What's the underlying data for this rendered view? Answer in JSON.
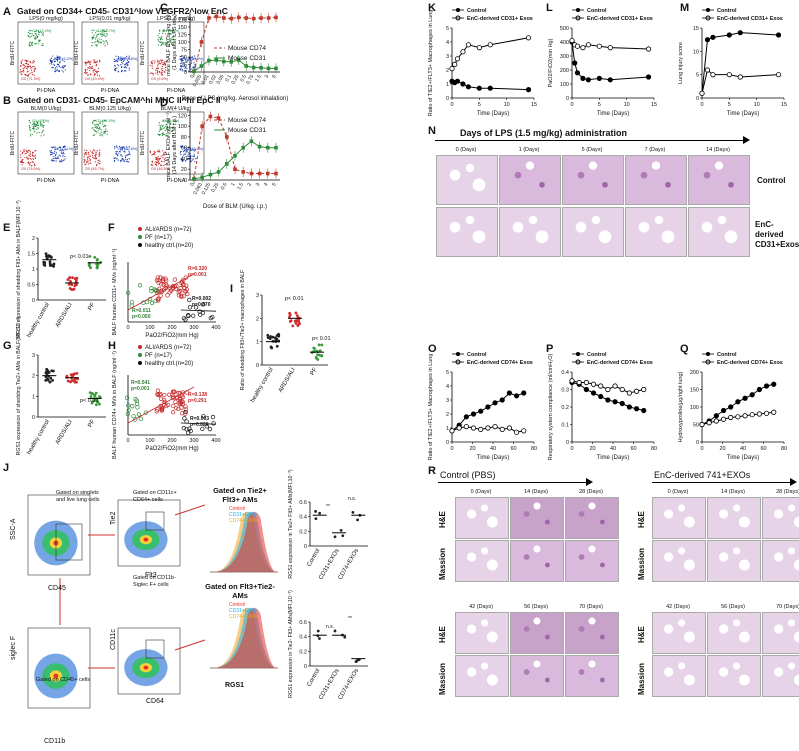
{
  "panels": {
    "A": {
      "letter": "A",
      "title": "Gated on CD34+ CD45- CD31^low VEGFR2^low EnC",
      "plots": [
        {
          "title": "LPS(0 mg/kg)",
          "g1": "G1 (12.4%)",
          "g2": "G2 (16.2%)",
          "g3": "G0 (71.3%)"
        },
        {
          "title": "LPS(0.01 mg/kg)",
          "g1": "G1 (21.7%)",
          "g2": "G2 (35.8%)",
          "g3": "G0 (43.4%)"
        },
        {
          "title": "LPS(1.5 mg/kg)",
          "g1": "G1 (1.5%)",
          "g2": "G2 (88.9%)",
          "g3": "G0 (9.6%)"
        }
      ],
      "xlabel": "PI-DNA",
      "ylabel": "BrdU-FITC"
    },
    "B": {
      "letter": "B",
      "title": "Gated on CD31- CD45- EpCAM^hi MHC II^hi EpC II",
      "plots": [
        {
          "title": "BLM(0 U/kg)",
          "g1": "G1 (8.4%)",
          "g2": "G2 (13.1%)",
          "g3": "G0 (78.5%)"
        },
        {
          "title": "BLM(0.125 U/kg)",
          "g1": "G1 (31.5%)",
          "g2": "G2 (22.8%)",
          "g3": "G0 (45.7%)"
        },
        {
          "title": "BLM(4 U/kg)",
          "g1": "G1 (8.0%)",
          "g2": "G2 (45.5%)",
          "g3": "G0 (46.5%)"
        }
      ],
      "xlabel": "PI-DNA",
      "ylabel": "BrdU-FITC"
    },
    "C": {
      "letter": "C"
    },
    "D": {
      "letter": "D"
    },
    "E": {
      "letter": "E"
    },
    "F": {
      "letter": "F"
    },
    "G": {
      "letter": "G"
    },
    "H": {
      "letter": "H"
    },
    "I": {
      "letter": "I"
    },
    "J": {
      "letter": "J"
    },
    "K": {
      "letter": "K"
    },
    "L": {
      "letter": "L"
    },
    "M": {
      "letter": "M"
    },
    "N": {
      "letter": "N"
    },
    "O": {
      "letter": "O"
    },
    "P": {
      "letter": "P"
    },
    "Q": {
      "letter": "Q"
    },
    "R": {
      "letter": "R"
    }
  },
  "panelN": {
    "title": "Days of LPS (1.5 mg/kg) administration",
    "days": [
      "0 (Days)",
      "1 (Days)",
      "5 (Days)",
      "7 (Days)",
      "14 (Days)"
    ],
    "rows": [
      "Control",
      "EnC-derived CD31+Exos"
    ],
    "scalebar": "500 μm"
  },
  "panelR": {
    "left_title": "Control (PBS)",
    "right_title": "EnC-derived 741+EXOs",
    "days_top": [
      "0 (Days)",
      "14 (Days)",
      "28 (Days)"
    ],
    "days_bottom": [
      "42 (Days)",
      "56 (Days)",
      "70 (Days)"
    ],
    "rows": [
      "H&E",
      "Massion"
    ]
  },
  "panelJ": {
    "axes": {
      "ssc": "SSC-A",
      "cd45": "CD45",
      "tie2": "Tie2",
      "flt3": "Flt3",
      "siglec": "siglec F",
      "cd11b": "CD11b",
      "cd11c": "CD11c",
      "cd64": "CD64",
      "rgs1": "RGS1"
    },
    "gates": {
      "g1": "Gated on singlets and live lung cells",
      "g2": "Gated on CD11c+ CD64+ cells",
      "g3": "Gated on CD45+ cells",
      "g4": "Gated on CD11b- Siglec F+ cells",
      "h1": "Gated on Tie2+ Flt3+ AMs",
      "h2": "Gated on Flt3+Tie2- AMs"
    },
    "legend": [
      "Control",
      "CD31+EXOs",
      "CD74+EXOs"
    ],
    "legend_colors": [
      "#e8312a",
      "#1ab0e8",
      "#f5a623"
    ]
  },
  "chart_data": [
    {
      "id": "C",
      "type": "line",
      "ylabel": "mice BALF EXOs (ng. ml⁻¹)",
      "ylabel2": "(1 Days after LPS inh.)",
      "xlabel": "Dose of LPS (mg/kg. Aerosol inhalation)",
      "x": [
        "0",
        "0.005",
        "0.01",
        "0.02",
        "0.05",
        "0.1",
        "0.25",
        "0.5",
        "0.75",
        "1.5",
        "3",
        "6"
      ],
      "ylim": [
        0,
        200
      ],
      "yticks": [
        0,
        25,
        50,
        75,
        100,
        125,
        150,
        175
      ],
      "series": [
        {
          "name": "Mouse CD74",
          "color": "#c0392b",
          "values": [
            2,
            100,
            180,
            185,
            180,
            178,
            182,
            180,
            178,
            180,
            180,
            182
          ]
        },
        {
          "name": "Mouse CD31",
          "color": "#2e8b3a",
          "values": [
            2,
            20,
            38,
            40,
            35,
            34,
            40,
            20,
            15,
            14,
            12,
            12
          ]
        }
      ]
    },
    {
      "id": "D",
      "type": "line",
      "ylabel": "mice BALF EXOs (ng. ml⁻¹)",
      "ylabel2": "(14 Days after BLM i.p.)",
      "xlabel": "Dose of BLM (U/kg. i.p.)",
      "x": [
        "0",
        "0.063",
        "0.125",
        "0.25",
        "0.5",
        "1",
        "1.5",
        "2",
        "3",
        "4",
        "5"
      ],
      "ylim": [
        0,
        130
      ],
      "yticks": [
        0,
        20,
        40,
        60,
        80,
        100,
        120
      ],
      "series": [
        {
          "name": "Mouse CD74",
          "color": "#c0392b",
          "values": [
            2,
            100,
            118,
            115,
            80,
            20,
            15,
            12,
            12,
            12,
            12
          ]
        },
        {
          "name": "Mouse CD31",
          "color": "#2e8b3a",
          "values": [
            2,
            5,
            10,
            15,
            30,
            45,
            60,
            72,
            62,
            60,
            60
          ]
        }
      ]
    },
    {
      "id": "E",
      "type": "scatter",
      "ylabel": "RGS1 expression of shedding Flt3+ AMs in BALF(MFI,10⁻³)",
      "categories": [
        "healthy control",
        "ARDS/ALI",
        "PF"
      ],
      "means": [
        1.3,
        0.55,
        1.2
      ],
      "ylim": [
        0,
        2.0
      ],
      "yticks": [
        0.0,
        0.5,
        1.0,
        1.5,
        2.0
      ],
      "annotation": "p< 0.01",
      "colors": [
        "#222222",
        "#d12c2c",
        "#3a9a3a"
      ]
    },
    {
      "id": "F",
      "type": "scatter",
      "ylabel": "BALF human CD31+ MVs (ng/ml⁻¹)",
      "xlabel": "PaO2/FiO2(mm Hg)",
      "ylim": [
        0,
        500
      ],
      "xlim": [
        0,
        400
      ],
      "legend": [
        "ALI/ARDS (n=72)",
        "PF (n=17)",
        "healthy ctrl.(n=20)"
      ],
      "stats": [
        {
          "text": "R=0.320",
          "color": "#c62828"
        },
        {
          "text": "p=0.001",
          "color": "#c62828"
        },
        {
          "text": "R=0.002",
          "color": "#111111"
        },
        {
          "text": "p=0.870",
          "color": "#111111"
        },
        {
          "text": "R=0.011",
          "color": "#2e7d32"
        },
        {
          "text": "p=0.050",
          "color": "#2e7d32"
        }
      ]
    },
    {
      "id": "G",
      "type": "scatter",
      "ylabel": "RGS1 expression of shedding Tie2+ AMs in BALF(MFI,10⁻³)",
      "categories": [
        "healthy control",
        "ARDS/ALI",
        "PF"
      ],
      "means": [
        2.0,
        1.9,
        0.9
      ],
      "ylim": [
        0,
        3
      ],
      "yticks": [
        0,
        1,
        2,
        3
      ],
      "annotation": "p< 0.01"
    },
    {
      "id": "H",
      "type": "scatter",
      "ylabel": "BALF human CD74+ MVs in BALF (ng/ml⁻¹)",
      "xlabel": "PaO2/FiO2(mm Hg)",
      "ylim": [
        0,
        25
      ],
      "xlim": [
        0,
        400
      ],
      "legend": [
        "ALI/ARDS (n=72)",
        "PF (n=17)",
        "healthy ctrl.(n=20)"
      ],
      "stats": [
        {
          "text": "R=0.541",
          "color": "#2e7d32"
        },
        {
          "text": "p=0.001",
          "color": "#2e7d32"
        },
        {
          "text": "R=0.138",
          "color": "#c62828"
        },
        {
          "text": "p=0.291",
          "color": "#c62828"
        },
        {
          "text": "R=0.003",
          "color": "#111111"
        },
        {
          "text": "p=0.820",
          "color": "#111111"
        }
      ]
    },
    {
      "id": "I",
      "type": "scatter",
      "ylabel": "Ratio of shedding Flt3+/Tie2+ macrophages in BALF",
      "categories": [
        "healthy control",
        "ARDS/ALI",
        "PF"
      ],
      "means": [
        1.0,
        2.0,
        0.55
      ],
      "ylim": [
        0,
        3
      ],
      "yticks": [
        0,
        1,
        2,
        3
      ],
      "annotations": [
        "p< 0.01",
        "p< 0.01"
      ]
    },
    {
      "id": "K",
      "type": "line",
      "ylabel": "Ratio of TIE2+/FLT3+ Macrophages in Lung",
      "xlabel": "Time (Days)",
      "xlim": [
        0,
        15
      ],
      "ylim": [
        0,
        5
      ],
      "xticks": [
        0,
        5,
        10,
        15
      ],
      "yticks": [
        0,
        1,
        2,
        3,
        4,
        5
      ],
      "legend": [
        "Control",
        "EnC-derived CD31+ Exos"
      ],
      "series": [
        {
          "name": "Control",
          "x": [
            0,
            0.5,
            1,
            2,
            3,
            5,
            7,
            14
          ],
          "values": [
            1.2,
            1.1,
            1.2,
            1.0,
            0.8,
            0.7,
            0.7,
            0.6
          ]
        },
        {
          "name": "EnC-derived CD31+ Exos",
          "x": [
            0,
            0.5,
            1,
            2,
            3,
            5,
            7,
            14
          ],
          "values": [
            2.1,
            2.4,
            2.8,
            3.3,
            3.8,
            3.6,
            3.8,
            4.3
          ]
        }
      ]
    },
    {
      "id": "L",
      "type": "line",
      "ylabel": "PaO2/FiO2(mm Hg)",
      "xlabel": "Time (Days)",
      "xlim": [
        0,
        15
      ],
      "ylim": [
        0,
        500
      ],
      "xticks": [
        0,
        5,
        10,
        15
      ],
      "yticks": [
        0,
        100,
        200,
        300,
        400,
        500
      ],
      "legend": [
        "Control",
        "EnC-derived CD31+ Exos"
      ],
      "series": [
        {
          "name": "Control",
          "x": [
            0,
            0.5,
            1,
            2,
            3,
            5,
            7,
            14
          ],
          "values": [
            400,
            250,
            180,
            140,
            130,
            140,
            130,
            150
          ]
        },
        {
          "name": "EnC-derived CD31+ Exos",
          "x": [
            0,
            0.5,
            1,
            2,
            3,
            5,
            7,
            14
          ],
          "values": [
            410,
            380,
            370,
            360,
            380,
            370,
            360,
            350
          ]
        }
      ]
    },
    {
      "id": "M",
      "type": "line",
      "ylabel": "Lung injury score",
      "xlabel": "Time (Days)",
      "xlim": [
        0,
        15
      ],
      "ylim": [
        0,
        15
      ],
      "xticks": [
        0,
        5,
        10,
        15
      ],
      "yticks": [
        0,
        5,
        10,
        15
      ],
      "legend": [
        "Control",
        "EnC-derived CD31+ Exos"
      ],
      "series": [
        {
          "name": "Control",
          "x": [
            0,
            1,
            2,
            5,
            7,
            14
          ],
          "values": [
            1,
            12.5,
            13,
            13.5,
            14,
            13.5
          ]
        },
        {
          "name": "EnC-derived CD31+ Exos",
          "x": [
            0,
            1,
            2,
            5,
            7,
            14
          ],
          "values": [
            1,
            6,
            5,
            5,
            4.5,
            5
          ]
        }
      ]
    },
    {
      "id": "O",
      "type": "line",
      "ylabel": "Ratio of TIE2+/FLT3+ Macrophages in Lung",
      "xlabel": "Time (Days)",
      "xlim": [
        0,
        80
      ],
      "ylim": [
        0,
        5
      ],
      "xticks": [
        0,
        20,
        40,
        60,
        80
      ],
      "yticks": [
        0,
        1,
        2,
        3,
        4,
        5
      ],
      "legend": [
        "Control",
        "EnC-derived CD74+ Exos"
      ],
      "series": [
        {
          "name": "Control",
          "x": [
            0,
            7,
            14,
            21,
            28,
            35,
            42,
            49,
            56,
            63,
            70
          ],
          "values": [
            0.8,
            1.2,
            1.8,
            2.0,
            2.2,
            2.5,
            2.8,
            3.0,
            3.5,
            3.3,
            3.5
          ]
        },
        {
          "name": "EnC-derived CD74+ Exos",
          "x": [
            0,
            7,
            14,
            21,
            28,
            35,
            42,
            49,
            56,
            63,
            70
          ],
          "values": [
            0.8,
            1.0,
            1.1,
            1.0,
            0.9,
            1.0,
            1.1,
            0.9,
            1.0,
            0.7,
            0.8
          ]
        }
      ]
    },
    {
      "id": "P",
      "type": "line",
      "ylabel": "Respiratory system compliance (ml/cmH₂O)",
      "xlabel": "Time (Days)",
      "xlim": [
        0,
        80
      ],
      "ylim": [
        0,
        0.4
      ],
      "xticks": [
        0,
        20,
        40,
        60,
        80
      ],
      "yticks": [
        0.0,
        0.1,
        0.2,
        0.3,
        0.4
      ],
      "legend": [
        "Control",
        "EnC-derived CD74+ Exos"
      ],
      "series": [
        {
          "name": "Control",
          "x": [
            0,
            7,
            14,
            21,
            28,
            35,
            42,
            49,
            56,
            63,
            70
          ],
          "values": [
            0.34,
            0.33,
            0.3,
            0.28,
            0.26,
            0.24,
            0.23,
            0.22,
            0.2,
            0.19,
            0.18
          ]
        },
        {
          "name": "EnC-derived CD74+ Exos",
          "x": [
            0,
            7,
            14,
            21,
            28,
            35,
            42,
            49,
            56,
            63,
            70
          ],
          "values": [
            0.35,
            0.34,
            0.34,
            0.33,
            0.32,
            0.3,
            0.32,
            0.3,
            0.28,
            0.29,
            0.3
          ]
        }
      ]
    },
    {
      "id": "Q",
      "type": "line",
      "ylabel": "Hydroxyproline(μg/right lung)",
      "xlabel": "Time (Days)",
      "xlim": [
        0,
        80
      ],
      "ylim": [
        0,
        200
      ],
      "xticks": [
        0,
        20,
        40,
        60,
        80
      ],
      "yticks": [
        0,
        50,
        100,
        150,
        200
      ],
      "legend": [
        "Control",
        "EnC-derived CD74+ Exos"
      ],
      "series": [
        {
          "name": "Control",
          "x": [
            0,
            7,
            14,
            21,
            28,
            35,
            42,
            49,
            56,
            63,
            70
          ],
          "values": [
            50,
            60,
            75,
            90,
            100,
            115,
            125,
            135,
            150,
            160,
            165
          ]
        },
        {
          "name": "EnC-derived CD74+ Exos",
          "x": [
            0,
            7,
            14,
            21,
            28,
            35,
            42,
            49,
            56,
            63,
            70
          ],
          "values": [
            50,
            55,
            60,
            65,
            70,
            72,
            75,
            78,
            80,
            82,
            85
          ]
        }
      ]
    },
    {
      "id": "J1",
      "type": "scatter",
      "ylabel": "RGS1 expression in Tie2+ Flt3+ AMs(MFI,10⁻³)",
      "categories": [
        "Control",
        "CD31+EXOs",
        "CD74+EXOs"
      ],
      "means": [
        0.42,
        0.18,
        0.42
      ],
      "ylim": [
        0,
        0.6
      ],
      "yticks": [
        0.0,
        0.2,
        0.4,
        0.6
      ],
      "annotations": [
        "**",
        "n.s."
      ]
    },
    {
      "id": "J2",
      "type": "scatter",
      "ylabel": "RGS1 expression in Tie2- Flt3+ AMs(MFI,10⁻³)",
      "categories": [
        "Control",
        "CD31+EXOs",
        "CD74+EXOs"
      ],
      "means": [
        0.42,
        0.42,
        0.1
      ],
      "ylim": [
        0,
        0.6
      ],
      "yticks": [
        0.0,
        0.2,
        0.4,
        0.6
      ],
      "annotations": [
        "n.s.",
        "**"
      ]
    }
  ]
}
